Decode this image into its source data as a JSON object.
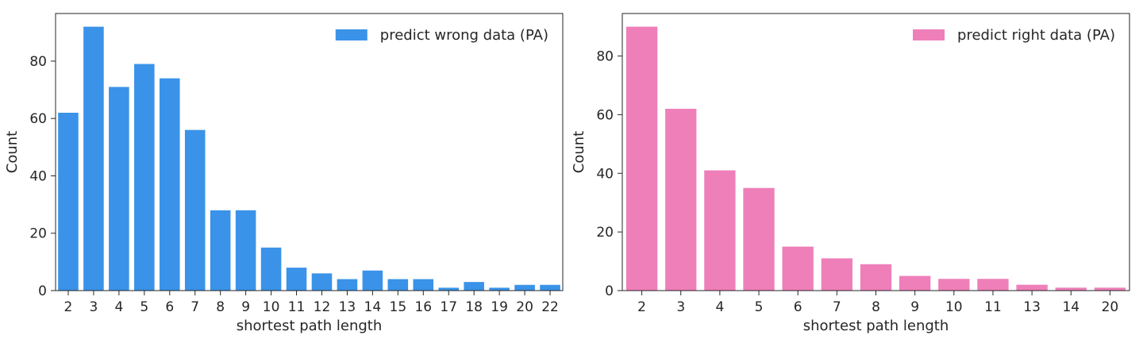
{
  "chart_data": [
    {
      "type": "bar",
      "categories": [
        "2",
        "3",
        "4",
        "5",
        "6",
        "7",
        "8",
        "9",
        "10",
        "11",
        "12",
        "13",
        "14",
        "15",
        "16",
        "17",
        "18",
        "19",
        "20",
        "22"
      ],
      "series": [
        {
          "name": "predict wrong data (PA)",
          "color": "#3a93e8",
          "values": [
            62,
            92,
            71,
            79,
            74,
            56,
            28,
            28,
            15,
            8,
            6,
            4,
            7,
            4,
            4,
            1,
            3,
            1,
            2,
            2
          ]
        }
      ],
      "xlabel": "shortest path length",
      "ylabel": "Count",
      "ylim": [
        0,
        96.6
      ],
      "yticks": [
        0,
        20,
        40,
        60,
        80
      ],
      "legend": "top-right",
      "grid": false
    },
    {
      "type": "bar",
      "categories": [
        "2",
        "3",
        "4",
        "5",
        "6",
        "7",
        "8",
        "9",
        "10",
        "11",
        "13",
        "14",
        "20"
      ],
      "series": [
        {
          "name": "predict right data (PA)",
          "color": "#ee7fb9",
          "values": [
            90,
            62,
            41,
            35,
            15,
            11,
            9,
            5,
            4,
            4,
            2,
            1,
            1
          ]
        }
      ],
      "xlabel": "shortest path length",
      "ylabel": "Count",
      "ylim": [
        0,
        94.5
      ],
      "yticks": [
        0,
        20,
        40,
        60,
        80
      ],
      "legend": "top-right",
      "grid": false
    }
  ]
}
